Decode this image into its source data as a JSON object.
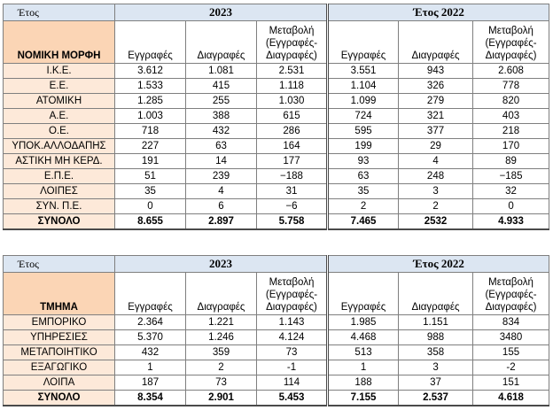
{
  "table1": {
    "header_label": "Έτος",
    "year_a": "2023",
    "year_b": "Έτος 2022",
    "row_header": "ΝΟΜΙΚΗ ΜΟΡΦΗ",
    "columns": [
      "Εγγραφές",
      "Διαγραφές",
      "Μεταβολή (Εγγραφές-Διαγραφές)",
      "Εγγραφές",
      "Διαγραφές",
      "Μεταβολή (Εγγραφές-Διαγραφές)"
    ],
    "rows": [
      {
        "name": "Ι.Κ.Ε.",
        "values": [
          "3.612",
          "1.081",
          "2.531",
          "3.551",
          "943",
          "2.608"
        ]
      },
      {
        "name": "Ε.Ε.",
        "values": [
          "1.533",
          "415",
          "1.118",
          "1.104",
          "326",
          "778"
        ]
      },
      {
        "name": "ΑΤΟΜΙΚΗ",
        "values": [
          "1.285",
          "255",
          "1.030",
          "1.099",
          "279",
          "820"
        ]
      },
      {
        "name": "Α.Ε.",
        "values": [
          "1.003",
          "388",
          "615",
          "724",
          "321",
          "403"
        ]
      },
      {
        "name": "Ο.Ε.",
        "values": [
          "718",
          "432",
          "286",
          "595",
          "377",
          "218"
        ]
      },
      {
        "name": "ΥΠΟΚ.ΑΛΛΟΔΑΠΗΣ",
        "values": [
          "227",
          "63",
          "164",
          "199",
          "29",
          "170"
        ]
      },
      {
        "name": "ΑΣΤΙΚΗ ΜΗ ΚΕΡΔ.",
        "values": [
          "191",
          "14",
          "177",
          "93",
          "4",
          "89"
        ]
      },
      {
        "name": "Ε.Π.Ε.",
        "values": [
          "51",
          "239",
          "−188",
          "63",
          "248",
          "−185"
        ]
      },
      {
        "name": "ΛΟΙΠΕΣ",
        "values": [
          "35",
          "4",
          "31",
          "35",
          "3",
          "32"
        ]
      },
      {
        "name": "ΣΥΝ. Π.Ε.",
        "values": [
          "0",
          "6",
          "−6",
          "2",
          "2",
          "0"
        ]
      }
    ],
    "total": {
      "name": "ΣΥΝΟΛΟ",
      "values": [
        "8.655",
        "2.897",
        "5.758",
        "7.465",
        "2532",
        "4.933"
      ]
    }
  },
  "table2": {
    "header_label": "Έτος",
    "year_a": "2023",
    "year_b": "Έτος 2022",
    "row_header": "ΤΜΗΜΑ",
    "columns": [
      "Εγγραφές",
      "Διαγραφές",
      "Μεταβολή (Εγγραφές-Διαγραφές)",
      "Εγγραφές",
      "Διαγραφές",
      "Μεταβολή (Εγγραφές-Διαγραφές)"
    ],
    "rows": [
      {
        "name": "ΕΜΠΟΡΙΚΟ",
        "values": [
          "2.364",
          "1.221",
          "1.143",
          "1.985",
          "1.151",
          "834"
        ]
      },
      {
        "name": "ΥΠΗΡΕΣΙΕΣ",
        "values": [
          "5.370",
          "1.246",
          "4.124",
          "4.468",
          "988",
          "3480"
        ]
      },
      {
        "name": "ΜΕΤΑΠΟΙΗΤΙΚΟ",
        "values": [
          "432",
          "359",
          "73",
          "513",
          "358",
          "155"
        ]
      },
      {
        "name": "ΕΞΑΓΩΓΙΚΟ",
        "values": [
          "1",
          "2",
          "-1",
          "1",
          "3",
          "-2"
        ]
      },
      {
        "name": "ΛΟΙΠΑ",
        "values": [
          "187",
          "73",
          "114",
          "188",
          "37",
          "151"
        ]
      }
    ],
    "total": {
      "name": "ΣΥΝΟΛΟ",
      "values": [
        "8.354",
        "2.901",
        "5.453",
        "7.155",
        "2.537",
        "4.618"
      ]
    }
  }
}
